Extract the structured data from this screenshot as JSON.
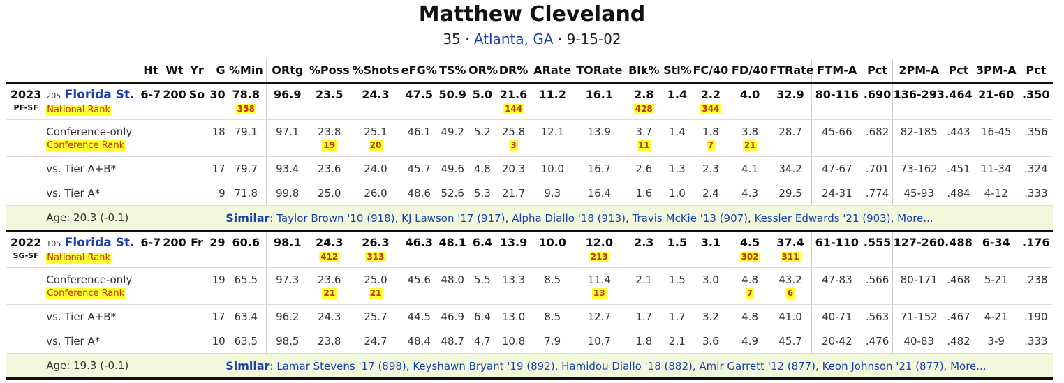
{
  "player": {
    "name": "Matthew Cleveland",
    "number": "35",
    "hometown": "Atlanta, GA",
    "birthdate": "9-15-02"
  },
  "columns": [
    "Ht",
    "Wt",
    "Yr",
    "G",
    "%Min",
    "ORtg",
    "%Poss",
    "%Shots",
    "eFG%",
    "TS%",
    "OR%",
    "DR%",
    "ARate",
    "TORate",
    "Blk%",
    "Stl%",
    "FC/40",
    "FD/40",
    "FTRate",
    "FTM-A",
    "Pct",
    "2PM-A",
    "Pct",
    "3PM-A",
    "Pct"
  ],
  "seasons": [
    {
      "year": "2023",
      "pos": "PF-SF",
      "team_rank": "205",
      "team": "Florida St.",
      "main": {
        "ht": "6-7",
        "wt": "200",
        "yr": "So",
        "g": "30",
        "stats": [
          "78.8",
          "96.9",
          "23.5",
          "24.3",
          "47.5",
          "50.9",
          "5.0",
          "21.6",
          "11.2",
          "16.1",
          "2.8",
          "1.4",
          "2.2",
          "4.0",
          "32.9",
          "80-116",
          ".690",
          "136-293",
          ".464",
          "21-60",
          ".350"
        ],
        "rank_label": "National Rank",
        "ranks": [
          "358",
          "",
          "",
          "",
          "",
          "",
          "",
          "144",
          "",
          "",
          "428",
          "",
          "344",
          "",
          "",
          "",
          "",
          "",
          "",
          "",
          ""
        ]
      },
      "conf": {
        "label": "Conference-only",
        "g": "18",
        "stats": [
          "79.1",
          "97.1",
          "23.8",
          "25.1",
          "46.1",
          "49.2",
          "5.2",
          "25.8",
          "12.1",
          "13.9",
          "3.7",
          "1.4",
          "1.8",
          "3.8",
          "28.7",
          "45-66",
          ".682",
          "82-185",
          ".443",
          "16-45",
          ".356"
        ],
        "rank_label": "Conference Rank",
        "ranks": [
          "",
          "",
          "19",
          "20",
          "",
          "",
          "",
          "3",
          "",
          "",
          "11",
          "",
          "7",
          "21",
          "",
          "",
          "",
          "",
          "",
          "",
          ""
        ]
      },
      "tier_ab": {
        "label": "vs. Tier A+B*",
        "g": "17",
        "stats": [
          "79.7",
          "93.4",
          "23.6",
          "24.0",
          "45.7",
          "49.6",
          "4.8",
          "20.3",
          "10.0",
          "16.7",
          "2.6",
          "1.3",
          "2.3",
          "4.1",
          "34.2",
          "47-67",
          ".701",
          "73-162",
          ".451",
          "11-34",
          ".324"
        ]
      },
      "tier_a": {
        "label": "vs. Tier A*",
        "g": "9",
        "stats": [
          "71.8",
          "99.8",
          "25.0",
          "26.0",
          "48.6",
          "52.6",
          "5.3",
          "21.7",
          "9.3",
          "16.4",
          "1.6",
          "1.0",
          "2.4",
          "4.3",
          "29.5",
          "24-31",
          ".774",
          "45-93",
          ".484",
          "4-12",
          ".333"
        ]
      },
      "age": "Age: 20.3 (-0.1)",
      "similar_label": "Similar",
      "similar": [
        "Taylor Brown '10 (918)",
        "KJ Lawson '17 (917)",
        "Alpha Diallo '18 (913)",
        "Travis McKie '13 (907)",
        "Kessler Edwards '21 (903)"
      ],
      "more": "More..."
    },
    {
      "year": "2022",
      "pos": "SG-SF",
      "team_rank": "105",
      "team": "Florida St.",
      "main": {
        "ht": "6-7",
        "wt": "200",
        "yr": "Fr",
        "g": "29",
        "stats": [
          "60.6",
          "98.1",
          "24.3",
          "26.3",
          "46.3",
          "48.1",
          "6.4",
          "13.9",
          "10.0",
          "12.0",
          "2.3",
          "1.5",
          "3.1",
          "4.5",
          "37.4",
          "61-110",
          ".555",
          "127-260",
          ".488",
          "6-34",
          ".176"
        ],
        "rank_label": "National Rank",
        "ranks": [
          "",
          "",
          "412",
          "313",
          "",
          "",
          "",
          "",
          "",
          "213",
          "",
          "",
          "",
          "302",
          "311",
          "",
          "",
          "",
          "",
          "",
          ""
        ]
      },
      "conf": {
        "label": "Conference-only",
        "g": "19",
        "stats": [
          "65.5",
          "97.3",
          "23.6",
          "25.0",
          "45.6",
          "48.0",
          "5.5",
          "13.3",
          "8.5",
          "11.4",
          "2.1",
          "1.5",
          "3.0",
          "4.8",
          "43.2",
          "47-83",
          ".566",
          "80-171",
          ".468",
          "5-21",
          ".238"
        ],
        "rank_label": "Conference Rank",
        "ranks": [
          "",
          "",
          "21",
          "21",
          "",
          "",
          "",
          "",
          "",
          "13",
          "",
          "",
          "",
          "7",
          "6",
          "",
          "",
          "",
          "",
          "",
          ""
        ]
      },
      "tier_ab": {
        "label": "vs. Tier A+B*",
        "g": "17",
        "stats": [
          "63.4",
          "96.2",
          "24.3",
          "25.7",
          "44.5",
          "46.9",
          "6.4",
          "13.0",
          "8.5",
          "12.7",
          "1.7",
          "1.7",
          "3.2",
          "4.8",
          "41.0",
          "40-71",
          ".563",
          "71-152",
          ".467",
          "4-21",
          ".190"
        ]
      },
      "tier_a": {
        "label": "vs. Tier A*",
        "g": "10",
        "stats": [
          "63.5",
          "98.5",
          "23.8",
          "24.7",
          "48.4",
          "48.7",
          "4.7",
          "10.8",
          "7.9",
          "10.7",
          "1.8",
          "2.1",
          "3.6",
          "4.9",
          "45.7",
          "20-42",
          ".476",
          "40-83",
          ".482",
          "3-9",
          ".333"
        ]
      },
      "age": "Age: 19.3 (-0.1)",
      "similar_label": "Similar",
      "similar": [
        "Lamar Stevens '17 (898)",
        "Keyshawn Bryant '19 (892)",
        "Hamidou Diallo '18 (882)",
        "Amir Garrett '12 (877)",
        "Keon Johnson '21 (877)"
      ],
      "more": "More..."
    }
  ]
}
